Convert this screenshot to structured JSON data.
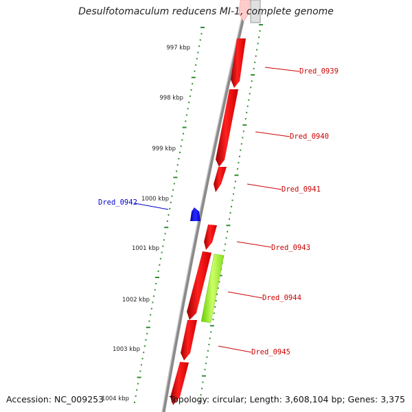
{
  "title": "Desulfotomaculum reducens MI-1, complete genome",
  "footer": {
    "accession": "Accession: NC_009253",
    "topology": "Topology: circular; Length: 3,608,104 bp; Genes: 3,375"
  },
  "colors": {
    "forward_gene": "#ff0000",
    "reverse_gene": "#0000ff",
    "highlight_gene": "#99ff33",
    "backbone": "#888888",
    "tick": "#2e8b2e"
  },
  "scale_ticks": [
    "997 kbp",
    "998 kbp",
    "999 kbp",
    "1000 kbp",
    "1001 kbp",
    "1002 kbp",
    "1003 kbp",
    "1004 kbp"
  ],
  "genes": [
    {
      "label": "Dred_0939",
      "color": "#cc0000"
    },
    {
      "label": "Dred_0940",
      "color": "#cc0000"
    },
    {
      "label": "Dred_0941",
      "color": "#cc0000"
    },
    {
      "label": "Dred_0942",
      "color": "#0000cc"
    },
    {
      "label": "Dred_0943",
      "color": "#cc0000"
    },
    {
      "label": "Dred_0944",
      "color": "#cc0000"
    },
    {
      "label": "Dred_0945",
      "color": "#cc0000"
    }
  ]
}
